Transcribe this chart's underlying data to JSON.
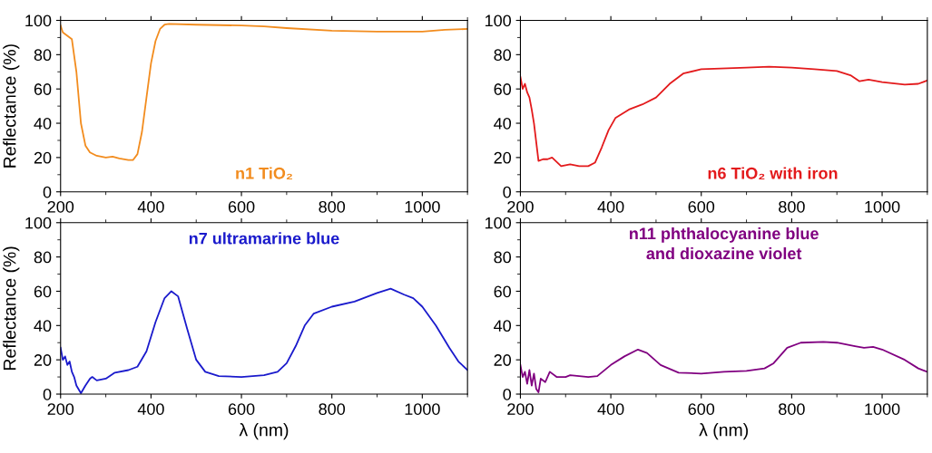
{
  "chart_data": [
    {
      "type": "line",
      "ylabel": "Reflectance (%)",
      "annotations": [
        "n1 TiO₂"
      ],
      "xlim": [
        200,
        1100
      ],
      "xticks": [
        200,
        400,
        600,
        800,
        1000
      ],
      "ylim": [
        0,
        100
      ],
      "yticks": [
        0,
        20,
        40,
        60,
        80,
        100
      ],
      "grid": false,
      "legend": false,
      "series": [
        {
          "color": "#f28c1e",
          "x": [
            200,
            205,
            215,
            225,
            235,
            245,
            255,
            265,
            280,
            300,
            315,
            330,
            350,
            360,
            370,
            380,
            390,
            400,
            410,
            420,
            430,
            440,
            500,
            600,
            650,
            700,
            800,
            900,
            1000,
            1050,
            1100
          ],
          "values": [
            97,
            93,
            91,
            89,
            70,
            40,
            27,
            23,
            21,
            20,
            20.5,
            19.5,
            18.5,
            18.5,
            22,
            35,
            55,
            75,
            88,
            95,
            97.5,
            98,
            97.5,
            97,
            96.5,
            95.5,
            94,
            93.5,
            93.5,
            94.5,
            95
          ]
        }
      ]
    },
    {
      "type": "line",
      "xlabel": "λ (nm)",
      "ylabel": "Reflectance (%)",
      "annotations": [
        "n7 ultramarine blue"
      ],
      "xlim": [
        200,
        1100
      ],
      "xticks": [
        200,
        400,
        600,
        800,
        1000
      ],
      "ylim": [
        0,
        100
      ],
      "yticks": [
        0,
        20,
        40,
        60,
        80,
        100
      ],
      "grid": false,
      "legend": false,
      "series": [
        {
          "color": "#1a1acc",
          "x": [
            200,
            205,
            210,
            215,
            220,
            225,
            230,
            235,
            245,
            255,
            265,
            270,
            280,
            300,
            320,
            350,
            370,
            390,
            410,
            430,
            445,
            460,
            480,
            500,
            520,
            550,
            600,
            650,
            680,
            700,
            720,
            740,
            760,
            800,
            850,
            900,
            930,
            960,
            980,
            1000,
            1030,
            1060,
            1080,
            1100
          ],
          "values": [
            27,
            20,
            22,
            17,
            19,
            13,
            10,
            5,
            0.5,
            5,
            9,
            10,
            8,
            9,
            12.5,
            14,
            16,
            25,
            42,
            56,
            60,
            57,
            38,
            20,
            13,
            10.5,
            10,
            11,
            13,
            18,
            28,
            40,
            47,
            51,
            54,
            59,
            61.5,
            58,
            56,
            51,
            40,
            27,
            19,
            14
          ]
        }
      ]
    },
    {
      "type": "line",
      "annotations": [
        "n6 TiO₂ with iron"
      ],
      "xlim": [
        200,
        1100
      ],
      "xticks": [
        200,
        400,
        600,
        800,
        1000
      ],
      "ylim": [
        0,
        100
      ],
      "yticks": [
        0,
        20,
        40,
        60,
        80,
        100
      ],
      "grid": false,
      "legend": false,
      "series": [
        {
          "color": "#e31a1c",
          "x": [
            200,
            205,
            210,
            215,
            220,
            225,
            230,
            240,
            250,
            260,
            270,
            290,
            310,
            330,
            350,
            365,
            380,
            395,
            410,
            440,
            470,
            500,
            530,
            560,
            600,
            700,
            750,
            800,
            850,
            900,
            930,
            950,
            970,
            1000,
            1050,
            1080,
            1100
          ],
          "values": [
            67,
            60,
            63,
            58,
            55,
            48,
            40,
            18,
            19,
            19,
            20,
            15,
            16,
            15,
            15,
            17,
            26,
            36,
            43,
            48,
            51,
            55,
            63,
            69,
            71.5,
            72.5,
            73,
            72.5,
            71.5,
            70.5,
            68,
            64.5,
            65.5,
            64,
            62.5,
            63,
            65
          ]
        }
      ]
    },
    {
      "type": "line",
      "xlabel": "λ (nm)",
      "annotations": [
        "n11 phthalocyanine blue\nand dioxazine violet"
      ],
      "xlim": [
        200,
        1100
      ],
      "xticks": [
        200,
        400,
        600,
        800,
        1000
      ],
      "ylim": [
        0,
        100
      ],
      "yticks": [
        0,
        20,
        40,
        60,
        80,
        100
      ],
      "grid": false,
      "legend": false,
      "series": [
        {
          "color": "#800080",
          "x": [
            200,
            205,
            210,
            215,
            220,
            225,
            230,
            235,
            240,
            245,
            255,
            265,
            280,
            300,
            310,
            350,
            370,
            400,
            430,
            460,
            480,
            510,
            550,
            600,
            650,
            700,
            740,
            760,
            790,
            820,
            870,
            900,
            940,
            960,
            980,
            1000,
            1050,
            1080,
            1100
          ],
          "values": [
            17,
            10,
            13,
            6,
            14,
            5,
            12,
            3,
            1,
            9,
            7,
            13,
            10,
            10,
            11,
            10,
            10.5,
            17,
            22,
            26,
            24,
            17,
            12.5,
            12,
            13,
            13.5,
            15,
            18,
            27,
            30,
            30.5,
            30,
            28,
            27,
            27.5,
            26,
            20,
            15,
            13
          ]
        }
      ]
    }
  ]
}
